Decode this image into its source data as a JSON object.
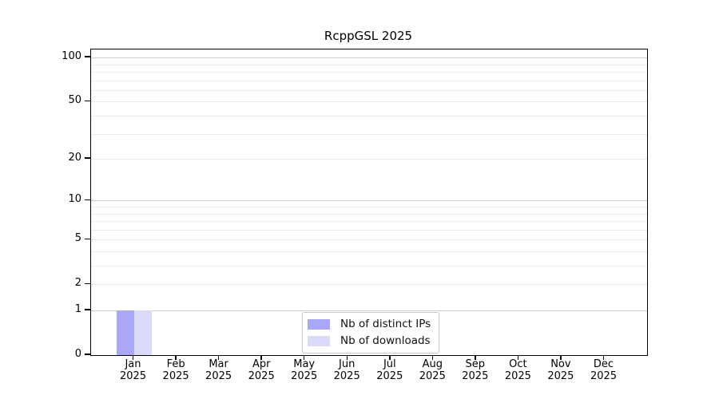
{
  "chart_data": {
    "type": "bar",
    "title": "RcppGSL 2025",
    "categories": [
      "Jan",
      "Feb",
      "Mar",
      "Apr",
      "May",
      "Jun",
      "Jul",
      "Aug",
      "Sep",
      "Oct",
      "Nov",
      "Dec"
    ],
    "category_year": "2025",
    "series": [
      {
        "name": "Nb of distinct IPs",
        "color": "#a8a8f7",
        "values": [
          1,
          0,
          0,
          0,
          0,
          0,
          0,
          0,
          0,
          0,
          0,
          0
        ]
      },
      {
        "name": "Nb of downloads",
        "color": "#d9d9f9",
        "values": [
          1,
          0,
          0,
          0,
          0,
          0,
          0,
          0,
          0,
          0,
          0,
          0
        ]
      }
    ],
    "xlabel": "",
    "ylabel": "",
    "yscale": "log1p",
    "ytick_values": [
      0,
      1,
      2,
      5,
      10,
      20,
      50,
      100
    ],
    "ytick_labels": [
      "0",
      "1",
      "2",
      "5",
      "10",
      "20",
      "50",
      "100"
    ],
    "grid_major_values": [
      1,
      10,
      100
    ],
    "grid_minor_values": [
      2,
      3,
      4,
      5,
      6,
      7,
      8,
      9,
      20,
      30,
      40,
      50,
      60,
      70,
      80,
      90
    ],
    "grid": "horizontal",
    "legend_position": "lower-center",
    "axis_color": "#000000",
    "grid_major_color": "#d0d0d0",
    "grid_minor_color": "#ededed"
  }
}
